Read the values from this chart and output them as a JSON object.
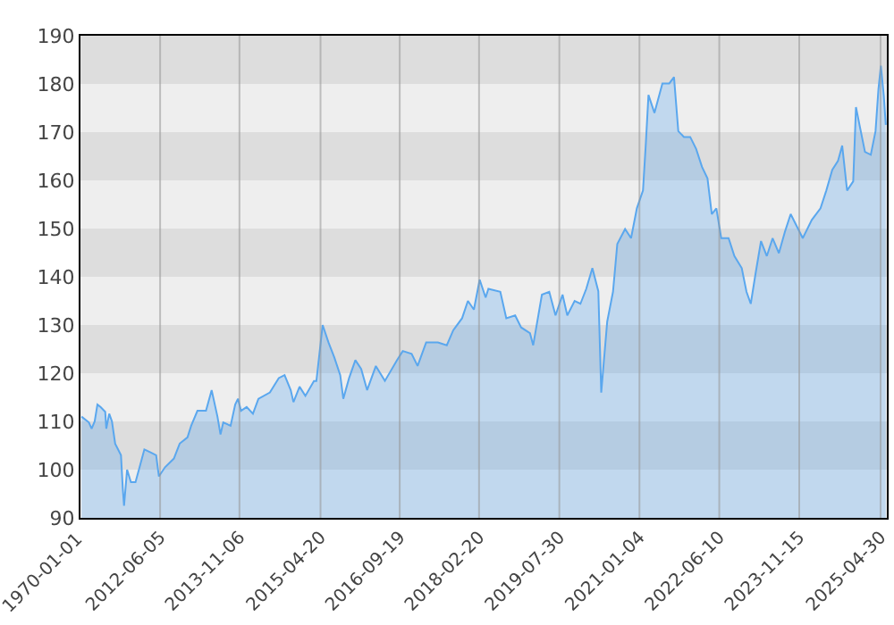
{
  "chart_data": {
    "type": "area",
    "x": [
      "2011-01-08",
      "2011-02-25",
      "2011-03-15",
      "2011-04-04",
      "2011-04-22",
      "2011-05-12",
      "2011-06-12",
      "2011-06-19",
      "2011-07-08",
      "2011-07-26",
      "2011-08-16",
      "2011-09-23",
      "2011-10-05",
      "2011-10-13",
      "2011-11-02",
      "2011-11-27",
      "2011-12-27",
      "2012-01-27",
      "2012-02-23",
      "2012-04-03",
      "2012-05-10",
      "2012-05-28",
      "2012-07-07",
      "2012-09-03",
      "2012-10-11",
      "2012-12-01",
      "2012-12-25",
      "2013-02-04",
      "2013-04-01",
      "2013-05-08",
      "2013-06-15",
      "2013-07-05",
      "2013-07-23",
      "2013-09-09",
      "2013-10-09",
      "2013-10-27",
      "2013-11-16",
      "2013-12-23",
      "2014-02-02",
      "2014-03-10",
      "2014-05-24",
      "2014-07-21",
      "2014-08-28",
      "2014-10-07",
      "2014-10-25",
      "2014-12-04",
      "2015-01-11",
      "2015-03-08",
      "2015-03-24",
      "2015-05-04",
      "2015-06-11",
      "2015-07-19",
      "2015-08-27",
      "2015-09-16",
      "2015-10-24",
      "2015-12-04",
      "2016-01-11",
      "2016-02-19",
      "2016-04-16",
      "2016-06-14",
      "2016-09-01",
      "2016-10-09",
      "2016-12-06",
      "2017-01-14",
      "2017-03-11",
      "2017-05-27",
      "2017-07-24",
      "2017-09-04",
      "2017-11-01",
      "2017-12-09",
      "2018-01-17",
      "2018-02-24",
      "2018-04-04",
      "2018-04-22",
      "2018-07-09",
      "2018-08-17",
      "2018-10-14",
      "2018-11-22",
      "2019-01-19",
      "2019-02-09",
      "2019-04-07",
      "2019-05-25",
      "2019-07-05",
      "2019-08-20",
      "2019-09-20",
      "2019-11-07",
      "2019-12-15",
      "2020-01-22",
      "2020-03-02",
      "2020-04-10",
      "2020-04-29",
      "2020-06-07",
      "2020-07-15",
      "2020-08-12",
      "2020-10-02",
      "2020-11-10",
      "2020-12-18",
      "2021-01-27",
      "2021-02-15",
      "2021-03-04",
      "2021-04-12",
      "2021-06-03",
      "2021-07-18",
      "2021-08-18",
      "2021-09-15",
      "2021-10-22",
      "2021-12-02",
      "2022-01-10",
      "2022-02-17",
      "2022-03-25",
      "2022-04-22",
      "2022-05-22",
      "2022-06-23",
      "2022-08-10",
      "2022-09-17",
      "2022-11-04",
      "2022-12-05",
      "2023-01-02",
      "2023-02-02",
      "2023-03-10",
      "2023-04-17",
      "2023-05-25",
      "2023-07-05",
      "2023-08-13",
      "2023-09-20",
      "2023-10-28",
      "2023-12-08",
      "2024-02-05",
      "2024-04-02",
      "2024-05-10",
      "2024-06-18",
      "2024-07-25",
      "2024-08-22",
      "2024-09-23",
      "2024-11-02",
      "2024-11-20",
      "2024-12-17",
      "2025-01-18",
      "2025-02-25",
      "2025-03-28",
      "2025-04-16",
      "2025-05-02",
      "2025-05-21",
      "2025-06-03"
    ],
    "series": [
      {
        "color": "#5aa7ee",
        "values": [
          111,
          109.8,
          108.5,
          110,
          113.5,
          113,
          112,
          108.5,
          111.6,
          110,
          105.4,
          103,
          96,
          92.5,
          100,
          97.4,
          97.4,
          101,
          104.2,
          103.6,
          103,
          98.6,
          100.5,
          102.3,
          105.4,
          106.7,
          109.1,
          112.2,
          112.2,
          116.5,
          111,
          107.3,
          109.8,
          109.1,
          113.5,
          114.7,
          112.2,
          113,
          111.6,
          114.7,
          116,
          119,
          119.6,
          116.5,
          114,
          117.2,
          115.3,
          118.4,
          118.4,
          130,
          126.4,
          123.3,
          119.6,
          114.7,
          119,
          122.7,
          120.9,
          116.5,
          121.5,
          118.4,
          122.7,
          124.6,
          124,
          121.5,
          126.4,
          126.4,
          125.8,
          128.9,
          131.4,
          135,
          133.2,
          139.4,
          135.7,
          137.5,
          136.9,
          131.4,
          132,
          129.5,
          128.3,
          125.8,
          136.3,
          136.9,
          132,
          136.3,
          132,
          135,
          134.4,
          137.5,
          141.8,
          137,
          116,
          130.7,
          136.9,
          146.8,
          149.9,
          148,
          154.2,
          157.9,
          167.8,
          177.7,
          174,
          180.1,
          180.1,
          181.4,
          170.2,
          169,
          169,
          166.5,
          162.8,
          160.4,
          153,
          154.2,
          148,
          148,
          144.3,
          141.8,
          136.9,
          134.4,
          140.6,
          147.4,
          144.3,
          148,
          144.9,
          149.3,
          153,
          150.6,
          148,
          151.8,
          154.2,
          157.9,
          162.2,
          164,
          167.2,
          157.9,
          159.8,
          175.2,
          170.9,
          165.9,
          165.3,
          170.2,
          178.9,
          183.8,
          177.6,
          171.5
        ]
      }
    ],
    "xlim": [
      "2011-01-01",
      "2025-06-10"
    ],
    "annotations": [
      "1970-01-01"
    ],
    "xticks": [
      {
        "value": "2012-06-05",
        "label": "2012-06-05"
      },
      {
        "value": "2013-11-06",
        "label": "2013-11-06"
      },
      {
        "value": "2015-04-20",
        "label": "2015-04-20"
      },
      {
        "value": "2016-09-19",
        "label": "2016-09-19"
      },
      {
        "value": "2018-02-20",
        "label": "2018-02-20"
      },
      {
        "value": "2019-07-30",
        "label": "2019-07-30"
      },
      {
        "value": "2021-01-04",
        "label": "2021-01-04"
      },
      {
        "value": "2022-06-10",
        "label": "2022-06-10"
      },
      {
        "value": "2023-11-15",
        "label": "2023-11-15"
      },
      {
        "value": "2025-04-30",
        "label": "2025-04-30"
      }
    ],
    "ylim": [
      90,
      190
    ],
    "yticks": [
      90,
      100,
      110,
      120,
      130,
      140,
      150,
      160,
      170,
      180,
      190
    ],
    "grid": "x",
    "bands": [
      {
        "axis": "y",
        "from": 90,
        "to": 100,
        "color": "#eeeeee"
      },
      {
        "axis": "y",
        "from": 100,
        "to": 110,
        "color": "#dddddd"
      },
      {
        "axis": "y",
        "from": 110,
        "to": 120,
        "color": "#eeeeee"
      },
      {
        "axis": "y",
        "from": 120,
        "to": 130,
        "color": "#dddddd"
      },
      {
        "axis": "y",
        "from": 130,
        "to": 140,
        "color": "#eeeeee"
      },
      {
        "axis": "y",
        "from": 140,
        "to": 150,
        "color": "#dddddd"
      },
      {
        "axis": "y",
        "from": 150,
        "to": 160,
        "color": "#eeeeee"
      },
      {
        "axis": "y",
        "from": 160,
        "to": 170,
        "color": "#dddddd"
      },
      {
        "axis": "y",
        "from": 170,
        "to": 180,
        "color": "#eeeeee"
      },
      {
        "axis": "y",
        "from": 180,
        "to": 190,
        "color": "#dddddd"
      }
    ]
  }
}
